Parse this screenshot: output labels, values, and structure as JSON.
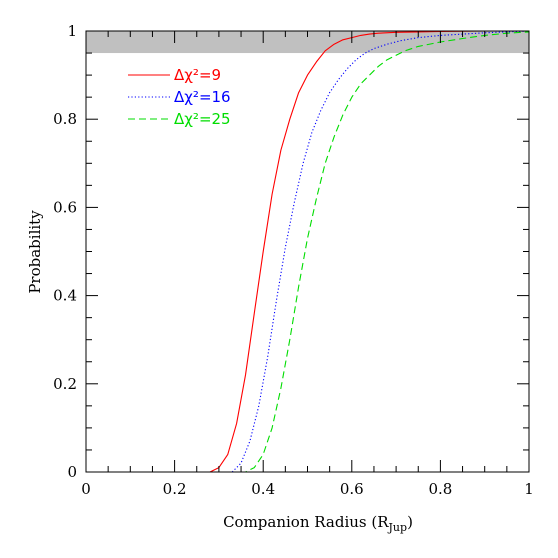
{
  "chart_data": {
    "type": "line",
    "xlabel": "Companion Radius (R",
    "xlabel_sub": "Jup",
    "xlabel_close": ")",
    "ylabel": "Probability",
    "xlim": [
      0,
      1
    ],
    "ylim": [
      0,
      1
    ],
    "xticks": [
      0,
      0.2,
      0.4,
      0.6,
      0.8,
      1
    ],
    "xtick_labels": [
      "0",
      "0.2",
      "0.4",
      "0.6",
      "0.8",
      "1"
    ],
    "yticks": [
      0,
      0.2,
      0.4,
      0.6,
      0.8,
      1
    ],
    "ytick_labels": [
      "0",
      "0.2",
      "0.4",
      "0.6",
      "0.8",
      "1"
    ],
    "shaded_band": {
      "y_from": 0.95,
      "y_to": 1.0,
      "color": "#c0c0c0"
    },
    "legend_position": "top-left",
    "series": [
      {
        "name": "Δχ²=9",
        "color": "#ff0000",
        "style": "solid",
        "x": [
          0,
          0.28,
          0.3,
          0.32,
          0.34,
          0.36,
          0.38,
          0.4,
          0.42,
          0.44,
          0.46,
          0.48,
          0.5,
          0.52,
          0.54,
          0.56,
          0.58,
          0.6,
          0.62,
          0.64,
          0.66,
          0.7,
          0.75,
          0.8,
          0.9,
          1.0
        ],
        "y": [
          0,
          0,
          0.01,
          0.04,
          0.11,
          0.22,
          0.36,
          0.5,
          0.63,
          0.73,
          0.8,
          0.86,
          0.9,
          0.93,
          0.955,
          0.97,
          0.98,
          0.985,
          0.99,
          0.993,
          0.995,
          0.997,
          0.998,
          0.999,
          1.0,
          1.0
        ]
      },
      {
        "name": "Δχ²=16",
        "color": "#0000ff",
        "style": "dotted",
        "x": [
          0,
          0.33,
          0.35,
          0.37,
          0.39,
          0.41,
          0.43,
          0.45,
          0.47,
          0.49,
          0.51,
          0.53,
          0.55,
          0.57,
          0.59,
          0.61,
          0.63,
          0.65,
          0.68,
          0.71,
          0.75,
          0.8,
          0.85,
          0.9,
          0.95,
          1.0
        ],
        "y": [
          0,
          0,
          0.02,
          0.07,
          0.15,
          0.26,
          0.39,
          0.51,
          0.61,
          0.7,
          0.77,
          0.82,
          0.86,
          0.89,
          0.915,
          0.935,
          0.95,
          0.96,
          0.97,
          0.978,
          0.985,
          0.99,
          0.993,
          0.996,
          0.998,
          1.0
        ]
      },
      {
        "name": "Δχ²=25",
        "color": "#00dd00",
        "style": "dashed",
        "x": [
          0,
          0.36,
          0.38,
          0.4,
          0.42,
          0.44,
          0.46,
          0.48,
          0.5,
          0.52,
          0.54,
          0.56,
          0.58,
          0.6,
          0.62,
          0.64,
          0.66,
          0.68,
          0.7,
          0.72,
          0.75,
          0.8,
          0.85,
          0.9,
          0.95,
          1.0
        ],
        "y": [
          0,
          0,
          0.01,
          0.04,
          0.1,
          0.19,
          0.3,
          0.42,
          0.53,
          0.62,
          0.7,
          0.76,
          0.81,
          0.85,
          0.88,
          0.9,
          0.92,
          0.935,
          0.945,
          0.955,
          0.965,
          0.975,
          0.983,
          0.99,
          0.995,
          0.998
        ]
      }
    ]
  }
}
